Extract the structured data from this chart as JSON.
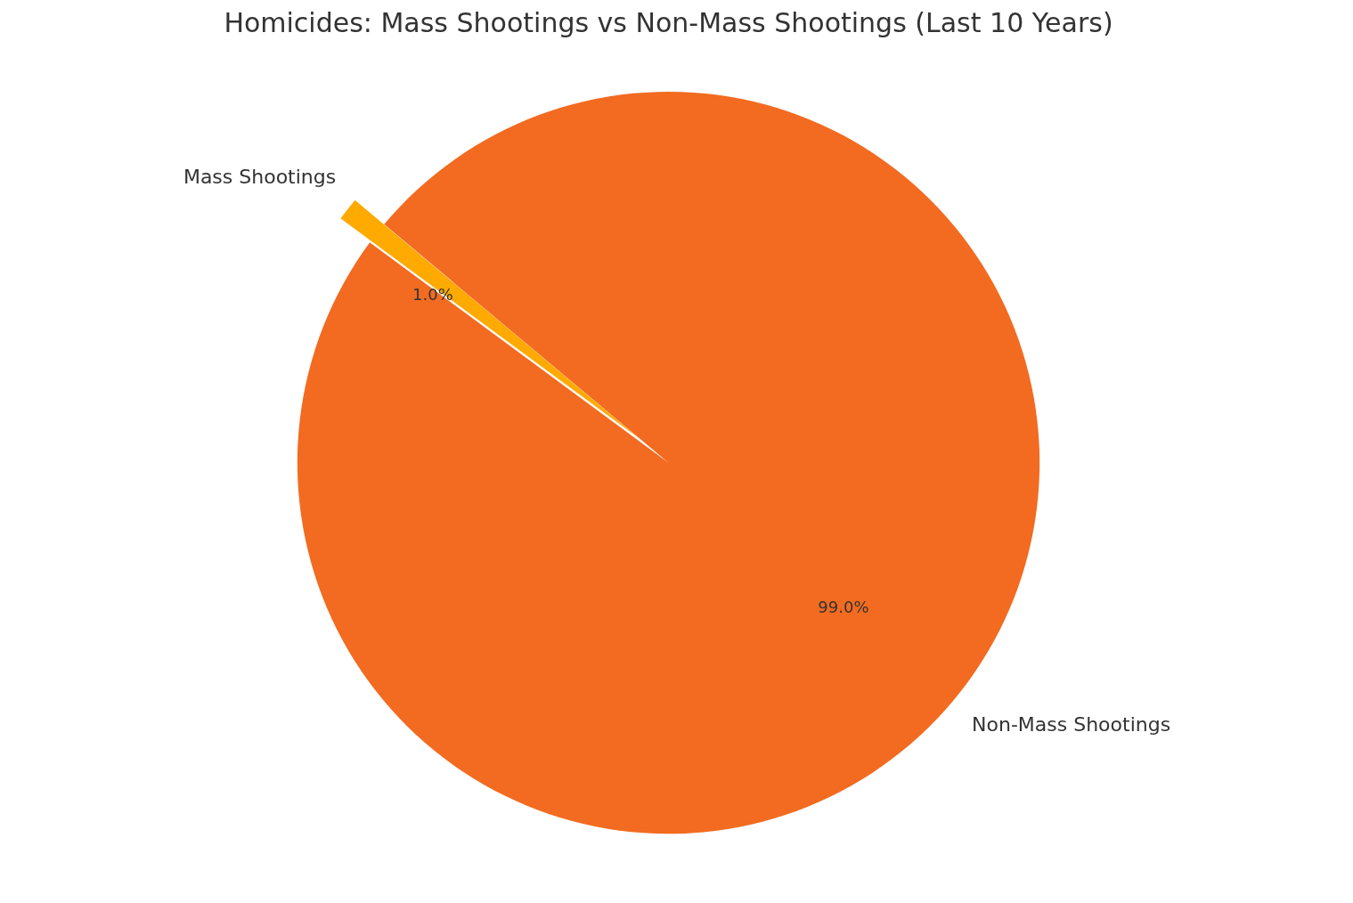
{
  "chart_data": {
    "type": "pie",
    "title": "Homicides: Mass Shootings vs Non-Mass Shootings (Last 10 Years)",
    "categories": [
      "Mass Shootings",
      "Non-Mass Shootings"
    ],
    "values": [
      1.0,
      99.0
    ],
    "colors": [
      "#ffaa00",
      "#f26b21"
    ],
    "value_labels": [
      "1.0%",
      "99.0%"
    ]
  }
}
